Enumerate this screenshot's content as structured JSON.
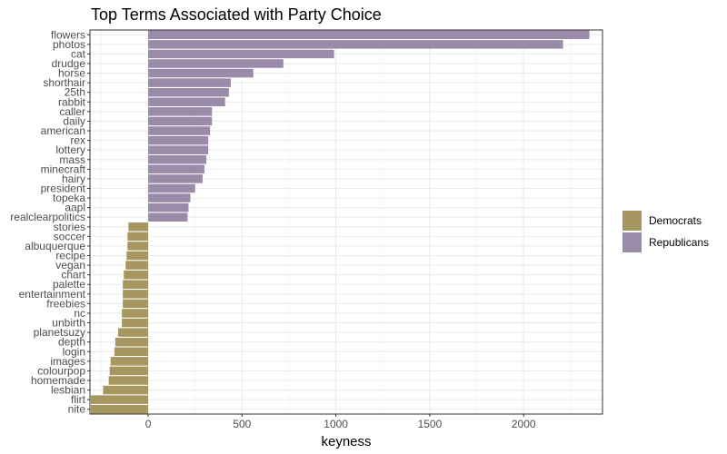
{
  "chart_data": {
    "type": "bar",
    "orientation": "horizontal",
    "title": "Top Terms Associated with Party Choice",
    "xlabel": "keyness",
    "ylabel": "",
    "xlim": [
      -310,
      2420
    ],
    "xticks": [
      0,
      500,
      1000,
      1500,
      2000
    ],
    "grid": true,
    "legend_position": "right",
    "categories": [
      "flowers",
      "photos",
      "cat",
      "drudge",
      "horse",
      "shorthair",
      "25th",
      "rabbit",
      "caller",
      "daily",
      "american",
      "rex",
      "lottery",
      "mass",
      "minecraft",
      "hairy",
      "president",
      "topeka",
      "aapl",
      "realclearpolitics",
      "stories",
      "soccer",
      "albuquerque",
      "recipe",
      "vegan",
      "chart",
      "palette",
      "entertainment",
      "freebies",
      "nc",
      "unbirth",
      "planetsuzy",
      "depth",
      "login",
      "images",
      "colourpop",
      "homemade",
      "lesbian",
      "flirt",
      "nite"
    ],
    "values": [
      2350,
      2210,
      990,
      720,
      560,
      440,
      430,
      410,
      340,
      340,
      330,
      320,
      320,
      310,
      300,
      290,
      250,
      225,
      215,
      210,
      -105,
      -110,
      -110,
      -115,
      -120,
      -130,
      -135,
      -135,
      -135,
      -140,
      -140,
      -160,
      -175,
      -180,
      -200,
      -205,
      -210,
      -240,
      -305,
      -305
    ],
    "series": [
      {
        "name": "Democrats",
        "color": "#A69760"
      },
      {
        "name": "Republicans",
        "color": "#9A8CA8"
      }
    ]
  }
}
